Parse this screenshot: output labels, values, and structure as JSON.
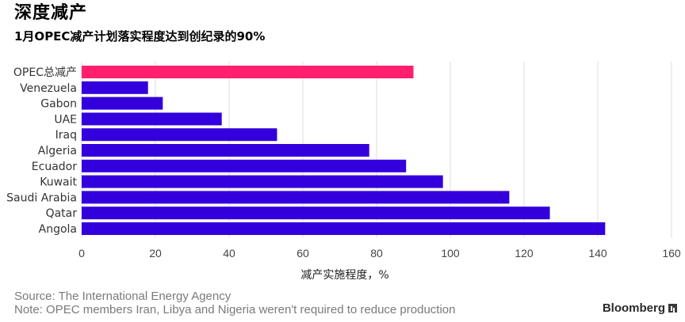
{
  "header": {
    "title": "深度减产",
    "subtitle": "1月OPEC减产计划落实程度达到创纪录的90%"
  },
  "chart_data": {
    "type": "bar",
    "orientation": "horizontal",
    "categories": [
      "OPEC总减产",
      "Venezuela",
      "Gabon",
      "UAE",
      "Iraq",
      "Algeria",
      "Ecuador",
      "Kuwait",
      "Saudi Arabia",
      "Qatar",
      "Angola"
    ],
    "values": [
      90,
      18,
      22,
      38,
      53,
      78,
      88,
      98,
      116,
      127,
      142
    ],
    "colors": [
      "#ff1f6e",
      "#3300dd",
      "#3300dd",
      "#3300dd",
      "#3300dd",
      "#3300dd",
      "#3300dd",
      "#3300dd",
      "#3300dd",
      "#3300dd",
      "#3300dd"
    ],
    "xlabel": "减产实施程度，%",
    "ylabel": "",
    "xlim": [
      0,
      160
    ],
    "xticks": [
      0,
      20,
      40,
      60,
      80,
      100,
      120,
      140,
      160
    ],
    "xtick_labels": [
      "0",
      "20",
      "40",
      "60",
      "80",
      "100",
      "120",
      "140",
      "160"
    ],
    "grid": true,
    "legend": "none",
    "grid_color": "#dddddd"
  },
  "footer": {
    "source": "Source: The International Energy Agency",
    "note": "Note: OPEC members Iran, Libya and Nigeria weren't required to reduce production",
    "brand": "Bloomberg"
  }
}
